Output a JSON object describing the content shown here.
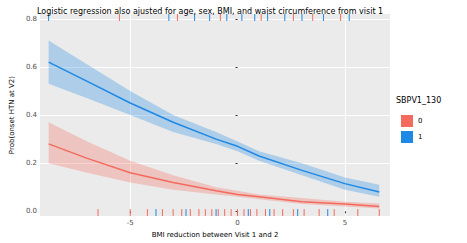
{
  "chart_data": {
    "type": "line",
    "title": "Logistic regression also ajusted for age, sex, BMI, and waist circumference from visit 1",
    "x_label": "BMI reduction between Visit 1 and 2",
    "y_label": "Prob(onset HTN at V2)",
    "legend_title": "SBPV1_130",
    "legend": "right",
    "grid": true,
    "xlim": [
      -9.2,
      7.1
    ],
    "xticks": [
      -5,
      0,
      5
    ],
    "ylim": [
      -0.02,
      0.82
    ],
    "yticks": [
      {
        "value": 0,
        "label": "0.0"
      },
      {
        "value": 0.2,
        "label": "0.2"
      },
      {
        "value": 0.4,
        "label": "0.4"
      },
      {
        "value": 0.6,
        "label": "0.6"
      },
      {
        "value": 0.8,
        "label": "0.8"
      }
    ],
    "x": [
      -8.8,
      -7,
      -5,
      -3,
      -1,
      0,
      1,
      3,
      5,
      6.6
    ],
    "series": [
      {
        "name": "0",
        "color": "#f26b5e",
        "values": [
          0.28,
          0.22,
          0.16,
          0.12,
          0.085,
          0.07,
          0.06,
          0.04,
          0.03,
          0.02
        ],
        "lower": [
          0.2,
          0.16,
          0.12,
          0.09,
          0.07,
          0.06,
          0.05,
          0.03,
          0.02,
          0.012
        ],
        "upper": [
          0.37,
          0.29,
          0.21,
          0.15,
          0.1,
          0.085,
          0.07,
          0.055,
          0.04,
          0.032
        ],
        "rug_top": [
          -5.5,
          -2.8,
          -0.8,
          1.1,
          2.6,
          3.5,
          4.8
        ],
        "rug_bottom": [
          -6.5,
          -5,
          -4.2,
          -3.5,
          -3,
          -2.6,
          -2.2,
          -1.8,
          -1.5,
          -1.2,
          -0.9,
          -0.6,
          -0.3,
          0,
          0.3,
          0.6,
          0.9,
          1.3,
          1.7,
          2.1,
          2.6,
          3.1,
          3.8,
          4.5,
          5.6,
          6.6
        ]
      },
      {
        "name": "1",
        "color": "#1e88e5",
        "values": [
          0.62,
          0.54,
          0.45,
          0.37,
          0.3,
          0.27,
          0.23,
          0.17,
          0.115,
          0.08
        ],
        "lower": [
          0.53,
          0.47,
          0.4,
          0.33,
          0.28,
          0.25,
          0.21,
          0.15,
          0.09,
          0.06
        ],
        "upper": [
          0.71,
          0.61,
          0.5,
          0.4,
          0.33,
          0.29,
          0.25,
          0.2,
          0.14,
          0.11
        ],
        "rug_top": [
          -8.8,
          -3.2,
          -2,
          -1.3,
          -0.5,
          0.2,
          0.8,
          1.4,
          2.2,
          3.0,
          4.0,
          5.2
        ],
        "rug_bottom": [
          -3.8,
          -2.4,
          -1,
          0.5,
          1.5,
          2.8,
          4.2
        ]
      }
    ]
  }
}
